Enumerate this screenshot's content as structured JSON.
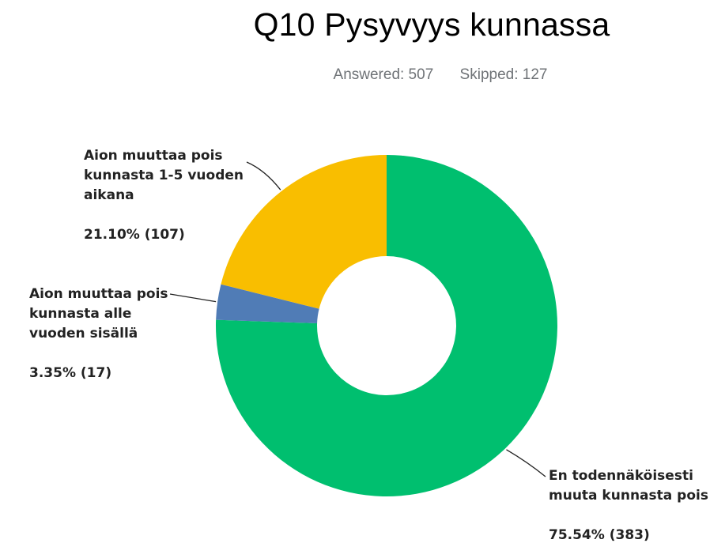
{
  "chart_data": {
    "type": "pie",
    "title": "Q10 Pysyvyys kunnassa",
    "answered_label": "Answered: 507",
    "skipped_label": "Skipped: 127",
    "slices": [
      {
        "label_lines": [
          "En todennäköisesti",
          "muuta kunnasta pois"
        ],
        "percent_label": "75.54% (383)",
        "percent": 75.54,
        "count": 383,
        "color": "#00bf6f"
      },
      {
        "label_lines": [
          "Aion muuttaa pois",
          "kunnasta alle",
          "vuoden sisällä"
        ],
        "percent_label": "3.35% (17)",
        "percent": 3.35,
        "count": 17,
        "color": "#507cb6"
      },
      {
        "label_lines": [
          "Aion muuttaa pois",
          "kunnasta 1-5 vuoden",
          "aikana"
        ],
        "percent_label": "21.10% (107)",
        "percent": 21.1,
        "count": 107,
        "color": "#f9be00"
      }
    ],
    "donut": true
  }
}
